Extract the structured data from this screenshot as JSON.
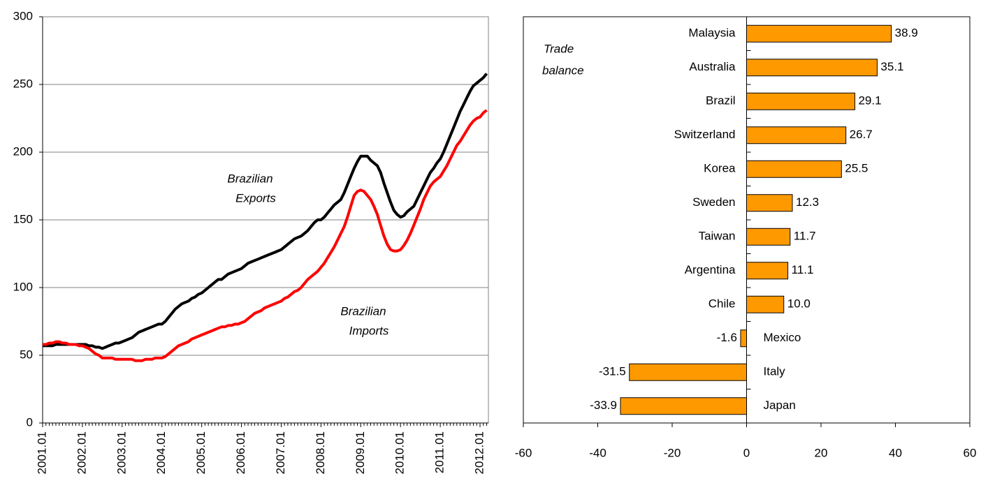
{
  "chart_data": [
    {
      "type": "line",
      "categories": [
        "2001.01",
        null,
        null,
        null,
        null,
        null,
        null,
        null,
        null,
        null,
        null,
        null,
        "2002.01",
        null,
        null,
        null,
        null,
        null,
        null,
        null,
        null,
        null,
        null,
        null,
        "2003.01",
        null,
        null,
        null,
        null,
        null,
        null,
        null,
        null,
        null,
        null,
        null,
        "2004.01",
        null,
        null,
        null,
        null,
        null,
        null,
        null,
        null,
        null,
        null,
        null,
        "2005.01",
        null,
        null,
        null,
        null,
        null,
        null,
        null,
        null,
        null,
        null,
        null,
        "2006.01",
        null,
        null,
        null,
        null,
        null,
        null,
        null,
        null,
        null,
        null,
        null,
        "2007.01",
        null,
        null,
        null,
        null,
        null,
        null,
        null,
        null,
        null,
        null,
        null,
        "2008.01",
        null,
        null,
        null,
        null,
        null,
        null,
        null,
        null,
        null,
        null,
        null,
        "2009.01",
        null,
        null,
        null,
        null,
        null,
        null,
        null,
        null,
        null,
        null,
        null,
        "2010.01",
        null,
        null,
        null,
        null,
        null,
        null,
        null,
        null,
        null,
        null,
        null,
        "2011.01",
        null,
        null,
        null,
        null,
        null,
        null,
        null,
        null,
        null,
        null,
        null,
        "2012.01",
        null,
        null
      ],
      "series": [
        {
          "color": "#000000",
          "values": [
            57,
            57,
            57,
            57,
            58,
            58,
            58,
            58,
            58,
            58,
            58,
            58,
            58,
            58,
            57,
            57,
            56,
            56,
            55,
            56,
            57,
            58,
            59,
            59,
            60,
            61,
            62,
            63,
            65,
            67,
            68,
            69,
            70,
            71,
            72,
            73,
            73,
            75,
            78,
            81,
            84,
            86,
            88,
            89,
            90,
            92,
            93,
            95,
            96,
            98,
            100,
            102,
            104,
            106,
            106,
            108,
            110,
            111,
            112,
            113,
            114,
            116,
            118,
            119,
            120,
            121,
            122,
            123,
            124,
            125,
            126,
            127,
            128,
            130,
            132,
            134,
            136,
            137,
            138,
            140,
            142,
            145,
            148,
            150,
            150,
            152,
            155,
            158,
            161,
            163,
            165,
            170,
            176,
            182,
            188,
            193,
            197,
            197,
            197,
            194,
            192,
            190,
            185,
            177,
            170,
            163,
            157,
            154,
            152,
            153,
            156,
            158,
            160,
            165,
            170,
            175,
            180,
            185,
            188,
            192,
            195,
            200,
            206,
            212,
            218,
            224,
            230,
            235,
            240,
            245,
            249,
            251,
            253,
            255,
            258
          ]
        },
        {
          "color": "#ff0000",
          "values": [
            58,
            58,
            59,
            59,
            60,
            60,
            59,
            59,
            58,
            58,
            58,
            57,
            57,
            56,
            55,
            53,
            51,
            50,
            48,
            48,
            48,
            48,
            47,
            47,
            47,
            47,
            47,
            47,
            46,
            46,
            46,
            47,
            47,
            47,
            48,
            48,
            48,
            49,
            51,
            53,
            55,
            57,
            58,
            59,
            60,
            62,
            63,
            64,
            65,
            66,
            67,
            68,
            69,
            70,
            71,
            71,
            72,
            72,
            73,
            73,
            74,
            75,
            77,
            79,
            81,
            82,
            83,
            85,
            86,
            87,
            88,
            89,
            90,
            92,
            93,
            95,
            97,
            98,
            100,
            103,
            106,
            108,
            110,
            112,
            115,
            118,
            122,
            126,
            130,
            135,
            140,
            145,
            152,
            160,
            168,
            171,
            172,
            171,
            168,
            165,
            160,
            154,
            146,
            138,
            132,
            128,
            127,
            127,
            128,
            131,
            135,
            140,
            146,
            152,
            158,
            165,
            170,
            175,
            178,
            180,
            182,
            186,
            190,
            195,
            200,
            205,
            208,
            212,
            216,
            220,
            223,
            225,
            226,
            229,
            231
          ]
        }
      ],
      "ylim": [
        0,
        300
      ],
      "yticks": [
        0,
        50,
        100,
        150,
        200,
        250,
        300
      ],
      "grid": true,
      "annotations": [
        [
          "Brazilian",
          "Exports"
        ],
        [
          "Brazilian",
          "Imports"
        ]
      ]
    },
    {
      "type": "barh",
      "categories": [
        "Malaysia",
        "Australia",
        "Brazil",
        "Switzerland",
        "Korea",
        "Sweden",
        "Taiwan",
        "Argentina",
        "Chile",
        "Mexico",
        "Italy",
        "Japan"
      ],
      "values": [
        38.9,
        35.1,
        29.1,
        26.7,
        25.5,
        12.3,
        11.7,
        11.1,
        10,
        -1.6,
        -31.5,
        -33.9
      ],
      "value_labels": [
        "38.9",
        "35.1",
        "29.1",
        "26.7",
        "25.5",
        "12.3",
        "11.7",
        "11.1",
        "10.0",
        "-1.6",
        "-31.5",
        "-33.9"
      ],
      "color": "#ff9900",
      "xlim": [
        -60,
        60
      ],
      "xticks": [
        -60,
        -40,
        -20,
        0,
        20,
        40,
        60
      ],
      "annotation": [
        "Trade",
        "balance"
      ]
    }
  ]
}
